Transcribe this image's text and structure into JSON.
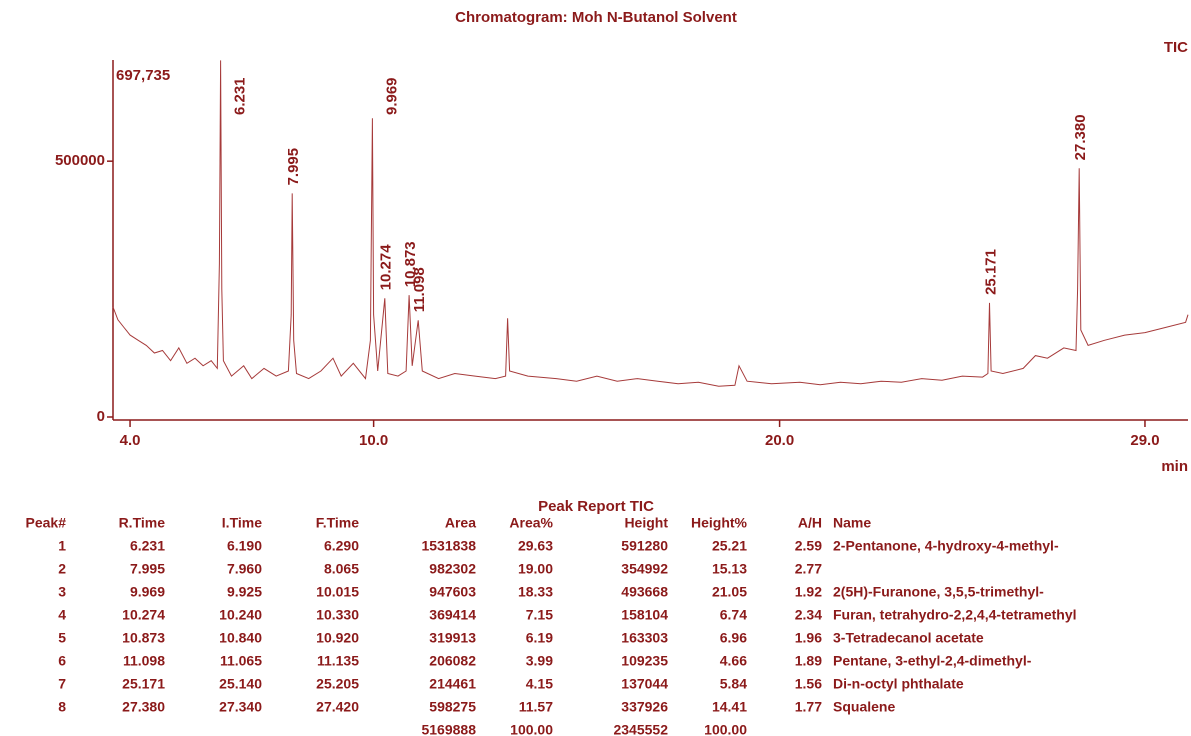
{
  "chart_data": {
    "type": "line",
    "title": "Chromatogram: Moh N-Butanol Solvent",
    "trace_label": "TIC",
    "ymax_label": "697,735",
    "xlabel": "min",
    "color": "#a63a3a",
    "xlim": [
      3.58,
      30.06
    ],
    "ylim": [
      0,
      697735
    ],
    "xticks": [
      {
        "value": 4,
        "label": "4.0"
      },
      {
        "value": 10,
        "label": "10.0"
      },
      {
        "value": 20,
        "label": "20.0"
      },
      {
        "value": 29,
        "label": "29.0"
      }
    ],
    "yticks": [
      0,
      500000
    ],
    "x": [
      3.58,
      3.7,
      3.85,
      4.0,
      4.2,
      4.4,
      4.6,
      4.8,
      5.0,
      5.2,
      5.4,
      5.6,
      5.8,
      6.0,
      6.15,
      6.2,
      6.231,
      6.26,
      6.3,
      6.5,
      6.8,
      7.0,
      7.3,
      7.6,
      7.9,
      7.97,
      7.995,
      8.03,
      8.1,
      8.4,
      8.7,
      9.0,
      9.2,
      9.5,
      9.8,
      9.92,
      9.969,
      10.0,
      10.1,
      10.274,
      10.35,
      10.6,
      10.8,
      10.873,
      10.95,
      11.098,
      11.2,
      11.6,
      12.0,
      12.5,
      13.0,
      13.25,
      13.3,
      13.35,
      13.8,
      14.5,
      15.0,
      15.5,
      16.0,
      16.5,
      17.0,
      17.5,
      18.0,
      18.5,
      18.9,
      19.0,
      19.2,
      19.8,
      20.5,
      21.0,
      21.5,
      22.0,
      22.5,
      23.0,
      23.5,
      24.0,
      24.5,
      25.0,
      25.13,
      25.171,
      25.21,
      25.5,
      26.0,
      26.3,
      26.6,
      27.0,
      27.3,
      27.34,
      27.38,
      27.42,
      27.6,
      28.0,
      28.5,
      29.0,
      29.5,
      30.0,
      30.06
    ],
    "values": [
      215000,
      190000,
      175000,
      160000,
      150000,
      140000,
      125000,
      130000,
      110000,
      135000,
      105000,
      115000,
      100000,
      110000,
      95000,
      300000,
      697000,
      250000,
      110000,
      80000,
      100000,
      75000,
      95000,
      80000,
      90000,
      200000,
      437000,
      150000,
      85000,
      75000,
      90000,
      115000,
      80000,
      105000,
      75000,
      150000,
      584000,
      200000,
      90000,
      232000,
      85000,
      80000,
      90000,
      238000,
      100000,
      189000,
      90000,
      75000,
      85000,
      80000,
      75000,
      80000,
      193000,
      90000,
      80000,
      75000,
      70000,
      80000,
      70000,
      75000,
      70000,
      65000,
      68000,
      60000,
      62000,
      100000,
      70000,
      65000,
      68000,
      63000,
      68000,
      65000,
      70000,
      68000,
      75000,
      72000,
      80000,
      78000,
      85000,
      223000,
      90000,
      85000,
      95000,
      120000,
      115000,
      135000,
      130000,
      250000,
      486000,
      170000,
      140000,
      150000,
      160000,
      165000,
      175000,
      185000,
      200000
    ],
    "peak_labels": [
      {
        "value": 6.231,
        "label": "6.231"
      },
      {
        "value": 7.995,
        "label": "7.995"
      },
      {
        "value": 9.969,
        "label": "9.969"
      },
      {
        "value": 10.274,
        "label": "10.274"
      },
      {
        "value": 10.873,
        "label": "10.873"
      },
      {
        "value": 11.098,
        "label": "11.098"
      },
      {
        "value": 25.171,
        "label": "25.171"
      },
      {
        "value": 27.38,
        "label": "27.380"
      }
    ]
  },
  "table": {
    "title": "Peak Report TIC",
    "columns": [
      "Peak#",
      "R.Time",
      "I.Time",
      "F.Time",
      "Area",
      "Area%",
      "Height",
      "Height%",
      "A/H",
      "Name"
    ],
    "rows": [
      [
        "1",
        "6.231",
        "6.190",
        "6.290",
        "1531838",
        "29.63",
        "591280",
        "25.21",
        "2.59",
        "2-Pentanone, 4-hydroxy-4-methyl-"
      ],
      [
        "2",
        "7.995",
        "7.960",
        "8.065",
        "982302",
        "19.00",
        "354992",
        "15.13",
        "2.77",
        null
      ],
      [
        "3",
        "9.969",
        "9.925",
        "10.015",
        "947603",
        "18.33",
        "493668",
        "21.05",
        "1.92",
        "2(5H)-Furanone, 3,5,5-trimethyl-"
      ],
      [
        "4",
        "10.274",
        "10.240",
        "10.330",
        "369414",
        "7.15",
        "158104",
        "6.74",
        "2.34",
        "Furan, tetrahydro-2,2,4,4-tetramethyl"
      ],
      [
        "5",
        "10.873",
        "10.840",
        "10.920",
        "319913",
        "6.19",
        "163303",
        "6.96",
        "1.96",
        "3-Tetradecanol acetate"
      ],
      [
        "6",
        "11.098",
        "11.065",
        "11.135",
        "206082",
        "3.99",
        "109235",
        "4.66",
        "1.89",
        "Pentane, 3-ethyl-2,4-dimethyl-"
      ],
      [
        "7",
        "25.171",
        "25.140",
        "25.205",
        "214461",
        "4.15",
        "137044",
        "5.84",
        "1.56",
        "Di-n-octyl phthalate"
      ],
      [
        "8",
        "27.380",
        "27.340",
        "27.420",
        "598275",
        "11.57",
        "337926",
        "14.41",
        "1.77",
        "Squalene"
      ],
      [
        null,
        null,
        null,
        null,
        "5169888",
        "100.00",
        "2345552",
        "100.00",
        null,
        null
      ]
    ]
  }
}
